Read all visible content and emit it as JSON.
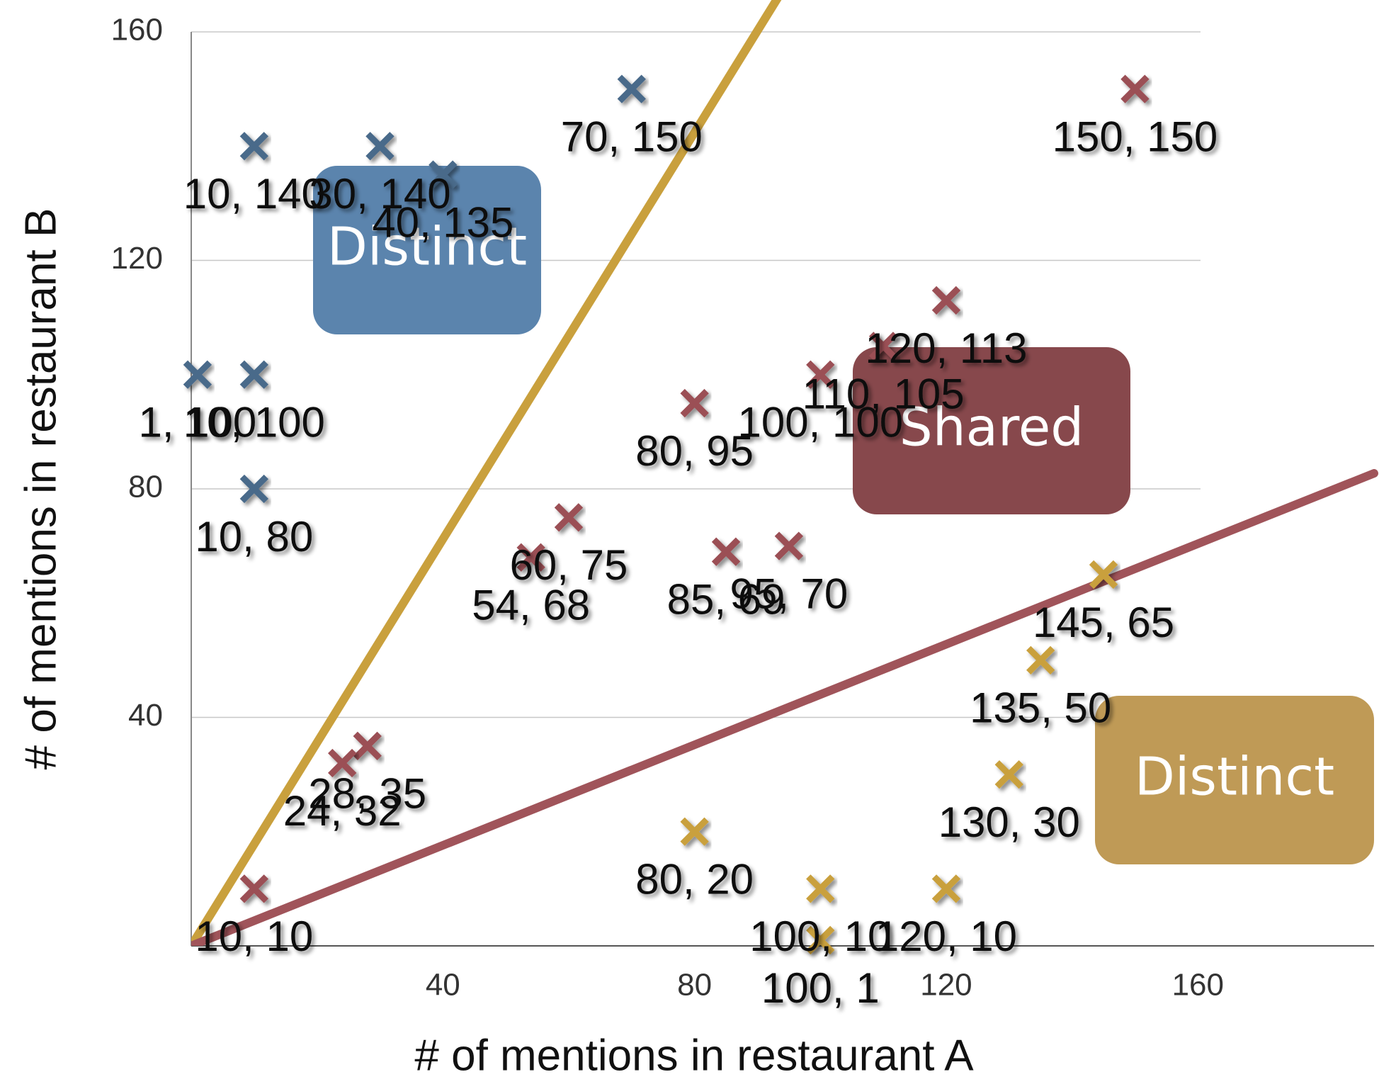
{
  "chart_data": {
    "type": "scatter",
    "x_label": "# of mentions in restaurant A",
    "y_label": "# of mentions in restaurant B",
    "xlim": [
      0,
      188
    ],
    "ylim": [
      0,
      160
    ],
    "xticks": [
      40,
      80,
      120,
      160
    ],
    "yticks": [
      40,
      80,
      120,
      160
    ],
    "grid": true,
    "series": [
      {
        "color": "#4a6a8a",
        "x": [
          10,
          30,
          40,
          70,
          1,
          10,
          10
        ],
        "values": [
          140,
          140,
          135,
          150,
          100,
          100,
          80
        ],
        "value_labels": [
          "10, 140",
          "30, 140",
          "40, 135",
          "70, 150",
          "1, 100",
          "10, 100",
          "10, 80"
        ]
      },
      {
        "color": "#9b4f55",
        "x": [
          150,
          120,
          110,
          100,
          80,
          60,
          54,
          85,
          95,
          28,
          24,
          10
        ],
        "values": [
          150,
          113,
          105,
          100,
          95,
          75,
          68,
          69,
          70,
          35,
          32,
          10
        ],
        "value_labels": [
          "150, 150",
          "120, 113",
          "110, 105",
          "100, 100",
          "80, 95",
          "60, 75",
          "54, 68",
          "85, 69",
          "95, 70",
          "28, 35",
          "24, 32",
          "10, 10"
        ]
      },
      {
        "color": "#c9a03d",
        "x": [
          145,
          135,
          130,
          80,
          100,
          120,
          100
        ],
        "values": [
          65,
          50,
          30,
          20,
          10,
          10,
          1
        ],
        "value_labels": [
          "145, 65",
          "135, 50",
          "130, 30",
          "80, 20",
          "100, 10",
          "120, 10",
          "100, 1"
        ]
      }
    ],
    "reference_lines": [
      {
        "slope": 1.78,
        "color": "#c9a03d"
      },
      {
        "slope": 0.44,
        "color": "#a0545a"
      }
    ],
    "annotations": [
      {
        "text": "Distinct",
        "color": "#5b84ad"
      },
      {
        "text": "Shared",
        "color": "#87484c"
      },
      {
        "text": "Distinct",
        "color": "#bf9a56"
      }
    ]
  }
}
